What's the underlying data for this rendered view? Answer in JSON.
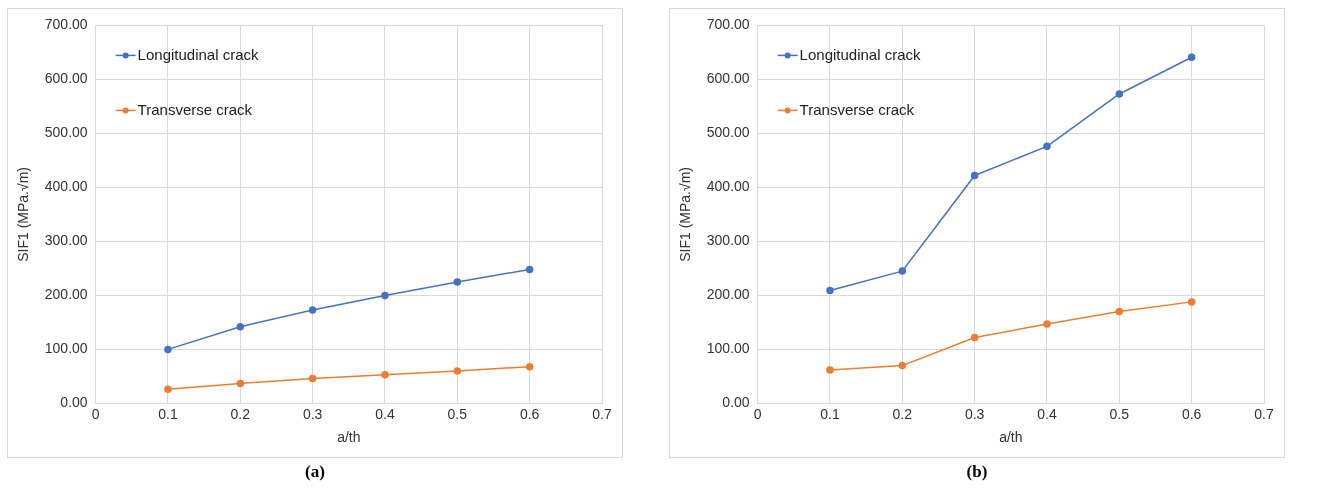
{
  "chart_data": [
    {
      "type": "line",
      "xlabel": "a/th",
      "ylabel": "SIF1 (MPa.√m)",
      "x": [
        0.1,
        0.2,
        0.3,
        0.4,
        0.5,
        0.6
      ],
      "series": [
        {
          "name": "Longitudinal crack",
          "color": "#4472c4",
          "values": [
            100,
            142,
            173,
            200,
            225,
            248
          ]
        },
        {
          "name": "Transverse crack",
          "color": "#ed7d31",
          "values": [
            26,
            37,
            46,
            53,
            60,
            68
          ]
        }
      ],
      "xlim": [
        0,
        0.7
      ],
      "xticks": [
        0,
        0.1,
        0.2,
        0.3,
        0.4,
        0.5,
        0.6,
        0.7
      ],
      "ylim": [
        0,
        700
      ],
      "yticks": [
        {
          "value": 0,
          "label": "0.00"
        },
        {
          "value": 100,
          "label": "100.00"
        },
        {
          "value": 200,
          "label": "200.00"
        },
        {
          "value": 300,
          "label": "300.00"
        },
        {
          "value": 400,
          "label": "400.00"
        },
        {
          "value": 500,
          "label": "500.00"
        },
        {
          "value": 600,
          "label": "600.00"
        },
        {
          "value": 700,
          "label": "700.00"
        }
      ],
      "grid": true,
      "legend": "top left",
      "marker": "circle",
      "line_style": "solid",
      "annotations": [
        "(a)"
      ]
    },
    {
      "type": "line",
      "xlabel": "a/th",
      "ylabel": "SIF1 (MPa.√m)",
      "x": [
        0.1,
        0.2,
        0.3,
        0.4,
        0.5,
        0.6
      ],
      "series": [
        {
          "name": "Longitudinal crack",
          "color": "#4472c4",
          "values": [
            209,
            245,
            422,
            476,
            573,
            641
          ]
        },
        {
          "name": "Transverse crack",
          "color": "#ed7d31",
          "values": [
            62,
            70,
            122,
            147,
            170,
            188
          ]
        }
      ],
      "xlim": [
        0,
        0.7
      ],
      "xticks": [
        0,
        0.1,
        0.2,
        0.3,
        0.4,
        0.5,
        0.6,
        0.7
      ],
      "ylim": [
        0,
        700
      ],
      "yticks": [
        {
          "value": 0,
          "label": "0.00"
        },
        {
          "value": 100,
          "label": "100.00"
        },
        {
          "value": 200,
          "label": "200.00"
        },
        {
          "value": 300,
          "label": "300.00"
        },
        {
          "value": 400,
          "label": "400.00"
        },
        {
          "value": 500,
          "label": "500.00"
        },
        {
          "value": 600,
          "label": "600.00"
        },
        {
          "value": 700,
          "label": "700.00"
        }
      ],
      "grid": true,
      "legend": "top left",
      "marker": "circle",
      "line_style": "solid",
      "annotations": [
        "(b)"
      ]
    }
  ]
}
